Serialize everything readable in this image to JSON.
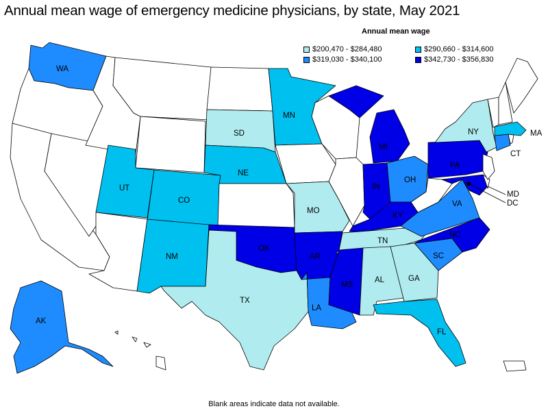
{
  "title": "Annual mean wage of emergency medicine physicians, by state, May 2021",
  "legend": {
    "title": "Annual mean wage",
    "items": [
      {
        "label": "$200,470 - $284,480",
        "color": "#b0ecef"
      },
      {
        "label": "$290,660 - $314,600",
        "color": "#00c0f0"
      },
      {
        "label": "$319,030 - $340,100",
        "color": "#1e8cff"
      },
      {
        "label": "$342,730 - $356,830",
        "color": "#0000e6"
      }
    ]
  },
  "colors": {
    "no_data": "#ffffff",
    "tier1": "#b0ecef",
    "tier2": "#00c0f0",
    "tier3": "#1e8cff",
    "tier4": "#0000e6"
  },
  "states": {
    "WA": {
      "label": "WA",
      "tier": 3
    },
    "MN": {
      "label": "MN",
      "tier": 2
    },
    "SD": {
      "label": "SD",
      "tier": 1
    },
    "NE": {
      "label": "NE",
      "tier": 2
    },
    "UT": {
      "label": "UT",
      "tier": 2
    },
    "CO": {
      "label": "CO",
      "tier": 2
    },
    "NM": {
      "label": "NM",
      "tier": 2
    },
    "TX": {
      "label": "TX",
      "tier": 1
    },
    "OK": {
      "label": "OK",
      "tier": 4
    },
    "AR": {
      "label": "AR",
      "tier": 4
    },
    "LA": {
      "label": "LA",
      "tier": 3
    },
    "MS": {
      "label": "MS",
      "tier": 4
    },
    "AL": {
      "label": "AL",
      "tier": 1
    },
    "GA": {
      "label": "GA",
      "tier": 1
    },
    "FL": {
      "label": "FL",
      "tier": 2
    },
    "SC": {
      "label": "SC",
      "tier": 3
    },
    "NC": {
      "label": "NC",
      "tier": 4
    },
    "TN": {
      "label": "TN",
      "tier": 1
    },
    "KY": {
      "label": "KY",
      "tier": 4
    },
    "IN": {
      "label": "IN",
      "tier": 4
    },
    "MI": {
      "label": "MI",
      "tier": 4
    },
    "OH": {
      "label": "OH",
      "tier": 3
    },
    "MO": {
      "label": "MO",
      "tier": 1
    },
    "VA": {
      "label": "VA",
      "tier": 3
    },
    "PA": {
      "label": "PA",
      "tier": 4
    },
    "NY": {
      "label": "NY",
      "tier": 1
    },
    "CT": {
      "label": "CT",
      "tier": 3
    },
    "MA": {
      "label": "MA",
      "tier": 2
    },
    "MD": {
      "label": "MD",
      "tier": 4
    },
    "DC": {
      "label": "DC",
      "tier": 4
    },
    "AK": {
      "label": "AK",
      "tier": 3
    }
  },
  "footnote": "Blank areas indicate data not available."
}
